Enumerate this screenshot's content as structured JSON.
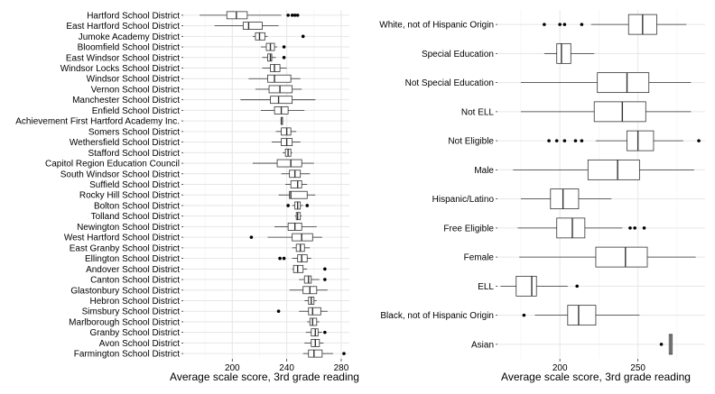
{
  "colors": {
    "panel": "#ffffff",
    "grid_major": "#e6e6e6",
    "grid_minor": "#f2f2f2",
    "box_stroke": "#333333",
    "text": "#000000"
  },
  "chart_data": [
    {
      "type": "boxplot",
      "orientation": "horizontal",
      "xlabel": "Average scale score, 3rd grade reading",
      "xlim": [
        164,
        286
      ],
      "x_ticks": [
        200,
        240,
        280
      ],
      "grid": true,
      "categories": [
        {
          "name": "Hartford School District",
          "whisker_low": 176,
          "q1": 196,
          "median": 203,
          "q3": 211,
          "whisker_high": 236,
          "outliers": [
            241,
            244,
            246,
            248
          ]
        },
        {
          "name": "East Hartford School District",
          "whisker_low": 187,
          "q1": 208,
          "median": 212,
          "q3": 222,
          "whisker_high": 234,
          "outliers": []
        },
        {
          "name": "Jumoke Academy District",
          "whisker_low": 215,
          "q1": 217,
          "median": 220,
          "q3": 224,
          "whisker_high": 226,
          "outliers": [
            252
          ]
        },
        {
          "name": "Bloomfield School District",
          "whisker_low": 221,
          "q1": 225,
          "median": 228,
          "q3": 231,
          "whisker_high": 233,
          "outliers": [
            238
          ]
        },
        {
          "name": "East Windsor School District",
          "whisker_low": 222,
          "q1": 226,
          "median": 228,
          "q3": 229,
          "whisker_high": 232,
          "outliers": [
            238
          ]
        },
        {
          "name": "Windsor Locks School District",
          "whisker_low": 222,
          "q1": 228,
          "median": 231,
          "q3": 235,
          "whisker_high": 240,
          "outliers": []
        },
        {
          "name": "Windsor School District",
          "whisker_low": 212,
          "q1": 226,
          "median": 231,
          "q3": 243,
          "whisker_high": 250,
          "outliers": []
        },
        {
          "name": "Vernon School District",
          "whisker_low": 217,
          "q1": 227,
          "median": 235,
          "q3": 244,
          "whisker_high": 251,
          "outliers": []
        },
        {
          "name": "Manchester School District",
          "whisker_low": 206,
          "q1": 228,
          "median": 234,
          "q3": 244,
          "whisker_high": 261,
          "outliers": []
        },
        {
          "name": "Enfield School District",
          "whisker_low": 221,
          "q1": 231,
          "median": 236,
          "q3": 241,
          "whisker_high": 253,
          "outliers": []
        },
        {
          "name": "Achievement First Hartford Academy Inc.",
          "whisker_low": 236,
          "q1": 236,
          "median": 236,
          "q3": 237,
          "whisker_high": 237,
          "outliers": []
        },
        {
          "name": "Somers School District",
          "whisker_low": 232,
          "q1": 236,
          "median": 240,
          "q3": 243,
          "whisker_high": 247,
          "outliers": []
        },
        {
          "name": "Wethersfield School District",
          "whisker_low": 229,
          "q1": 236,
          "median": 240,
          "q3": 244,
          "whisker_high": 250,
          "outliers": []
        },
        {
          "name": "Stafford School District",
          "whisker_low": 237,
          "q1": 239,
          "median": 241,
          "q3": 243,
          "whisker_high": 244,
          "outliers": []
        },
        {
          "name": "Capitol Region Education Council",
          "whisker_low": 215,
          "q1": 233,
          "median": 243,
          "q3": 251,
          "whisker_high": 260,
          "outliers": []
        },
        {
          "name": "South Windsor School District",
          "whisker_low": 236,
          "q1": 242,
          "median": 246,
          "q3": 250,
          "whisker_high": 257,
          "outliers": []
        },
        {
          "name": "Suffield School District",
          "whisker_low": 239,
          "q1": 243,
          "median": 248,
          "q3": 251,
          "whisker_high": 255,
          "outliers": []
        },
        {
          "name": "Rocky Hill School District",
          "whisker_low": 234,
          "q1": 242,
          "median": 243,
          "q3": 255,
          "whisker_high": 261,
          "outliers": []
        },
        {
          "name": "Bolton School District",
          "whisker_low": 244,
          "q1": 246,
          "median": 248,
          "q3": 250,
          "whisker_high": 252,
          "outliers": [
            241,
            255
          ]
        },
        {
          "name": "Tolland School District",
          "whisker_low": 246,
          "q1": 247,
          "median": 248,
          "q3": 250,
          "whisker_high": 251,
          "outliers": []
        },
        {
          "name": "Newington School District",
          "whisker_low": 231,
          "q1": 241,
          "median": 246,
          "q3": 251,
          "whisker_high": 262,
          "outliers": []
        },
        {
          "name": "West Hartford School District",
          "whisker_low": 226,
          "q1": 244,
          "median": 251,
          "q3": 259,
          "whisker_high": 266,
          "outliers": [
            214
          ]
        },
        {
          "name": "East Granby School District",
          "whisker_low": 244,
          "q1": 247,
          "median": 250,
          "q3": 253,
          "whisker_high": 257,
          "outliers": []
        },
        {
          "name": "Ellington School District",
          "whisker_low": 244,
          "q1": 248,
          "median": 251,
          "q3": 255,
          "whisker_high": 258,
          "outliers": [
            235,
            238
          ]
        },
        {
          "name": "Andover School District",
          "whisker_low": 244,
          "q1": 245,
          "median": 248,
          "q3": 252,
          "whisker_high": 255,
          "outliers": [
            268
          ]
        },
        {
          "name": "Canton School District",
          "whisker_low": 249,
          "q1": 253,
          "median": 256,
          "q3": 258,
          "whisker_high": 264,
          "outliers": [
            268
          ]
        },
        {
          "name": "Glastonbury School District",
          "whisker_low": 242,
          "q1": 252,
          "median": 257,
          "q3": 262,
          "whisker_high": 270,
          "outliers": []
        },
        {
          "name": "Hebron School District",
          "whisker_low": 253,
          "q1": 256,
          "median": 258,
          "q3": 260,
          "whisker_high": 262,
          "outliers": []
        },
        {
          "name": "Simsbury School District",
          "whisker_low": 249,
          "q1": 256,
          "median": 259,
          "q3": 265,
          "whisker_high": 270,
          "outliers": [
            234
          ]
        },
        {
          "name": "Marlborough School District",
          "whisker_low": 255,
          "q1": 257,
          "median": 259,
          "q3": 262,
          "whisker_high": 264,
          "outliers": []
        },
        {
          "name": "Granby School District",
          "whisker_low": 254,
          "q1": 258,
          "median": 261,
          "q3": 263,
          "whisker_high": 266,
          "outliers": [
            268
          ]
        },
        {
          "name": "Avon School District",
          "whisker_low": 253,
          "q1": 258,
          "median": 261,
          "q3": 264,
          "whisker_high": 267,
          "outliers": []
        },
        {
          "name": "Farmington School District",
          "whisker_low": 252,
          "q1": 256,
          "median": 260,
          "q3": 266,
          "whisker_high": 274,
          "outliers": [
            282
          ]
        }
      ]
    },
    {
      "type": "boxplot",
      "orientation": "horizontal",
      "xlabel": "Average scale score, 3rd grade reading",
      "xlim": [
        160,
        293
      ],
      "x_ticks": [
        200,
        250
      ],
      "grid": true,
      "categories": [
        {
          "name": "White, not of Hispanic Origin",
          "whisker_low": 220,
          "q1": 244,
          "median": 253,
          "q3": 262,
          "whisker_high": 281,
          "outliers": [
            190,
            200,
            203,
            214
          ]
        },
        {
          "name": "Special Education",
          "whisker_low": 190,
          "q1": 198,
          "median": 201,
          "q3": 207,
          "whisker_high": 222,
          "outliers": []
        },
        {
          "name": "Not Special Education",
          "whisker_low": 175,
          "q1": 224,
          "median": 243,
          "q3": 257,
          "whisker_high": 284,
          "outliers": []
        },
        {
          "name": "Not ELL",
          "whisker_low": 175,
          "q1": 222,
          "median": 240,
          "q3": 255,
          "whisker_high": 284,
          "outliers": []
        },
        {
          "name": "Not Eligible",
          "whisker_low": 223,
          "q1": 243,
          "median": 250,
          "q3": 260,
          "whisker_high": 279,
          "outliers": [
            193,
            198,
            203,
            210,
            214,
            289
          ]
        },
        {
          "name": "Male",
          "whisker_low": 170,
          "q1": 218,
          "median": 237,
          "q3": 251,
          "whisker_high": 286,
          "outliers": []
        },
        {
          "name": "Hispanic/Latino",
          "whisker_low": 175,
          "q1": 194,
          "median": 202,
          "q3": 212,
          "whisker_high": 233,
          "outliers": []
        },
        {
          "name": "Free Eligible",
          "whisker_low": 173,
          "q1": 198,
          "median": 208,
          "q3": 216,
          "whisker_high": 240,
          "outliers": [
            245,
            248,
            254
          ]
        },
        {
          "name": "Female",
          "whisker_low": 174,
          "q1": 223,
          "median": 242,
          "q3": 256,
          "whisker_high": 287,
          "outliers": []
        },
        {
          "name": "ELL",
          "whisker_low": 162,
          "q1": 172,
          "median": 182,
          "q3": 185,
          "whisker_high": 205,
          "outliers": [
            211
          ]
        },
        {
          "name": "Black, not of Hispanic Origin",
          "whisker_low": 184,
          "q1": 205,
          "median": 212,
          "q3": 223,
          "whisker_high": 251,
          "outliers": [
            177
          ]
        },
        {
          "name": "Asian",
          "whisker_low": 270,
          "q1": 270,
          "median": 271,
          "q3": 272,
          "whisker_high": 272,
          "outliers": [
            265
          ]
        }
      ]
    }
  ]
}
